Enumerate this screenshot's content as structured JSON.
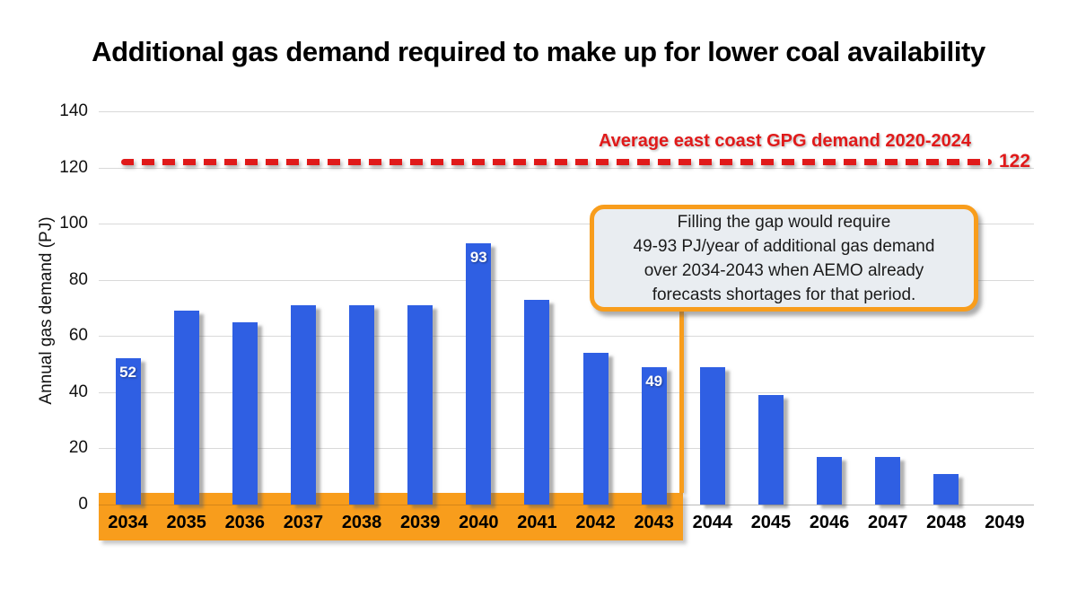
{
  "title": "Additional gas demand required to make up for lower coal availability",
  "chart_data": {
    "type": "bar",
    "title": "Additional gas demand required to make up for lower coal availability",
    "xlabel": "",
    "ylabel": "Annual gas demand (PJ)",
    "ylim": [
      0,
      140
    ],
    "yticks": [
      0,
      20,
      40,
      60,
      80,
      100,
      120,
      140
    ],
    "grid": true,
    "bar_color": "#2F5FE3",
    "categories": [
      "2034",
      "2035",
      "2036",
      "2037",
      "2038",
      "2039",
      "2040",
      "2041",
      "2042",
      "2043",
      "2044",
      "2045",
      "2046",
      "2047",
      "2048",
      "2049"
    ],
    "values": [
      52,
      69,
      65,
      71,
      71,
      71,
      93,
      73,
      54,
      49,
      49,
      39,
      17,
      17,
      11,
      0
    ],
    "data_labels": {
      "2034": "52",
      "2040": "93",
      "2043": "49"
    },
    "reference_line": {
      "value": 122,
      "value_label": "122",
      "label": "Average east coast GPG demand 2020-2024",
      "color": "#E01A1A",
      "style": "dashed"
    },
    "highlight_band": {
      "from_category": "2034",
      "to_category": "2043",
      "color": "#F89D1C"
    },
    "annotation": {
      "text": "Filling the gap would require\n49-93 PJ/year of additional gas demand\nover 2034-2043 when AEMO already\nforecasts shortages for that period.",
      "border_color": "#F89D1C",
      "background": "#E9EDF1"
    }
  }
}
